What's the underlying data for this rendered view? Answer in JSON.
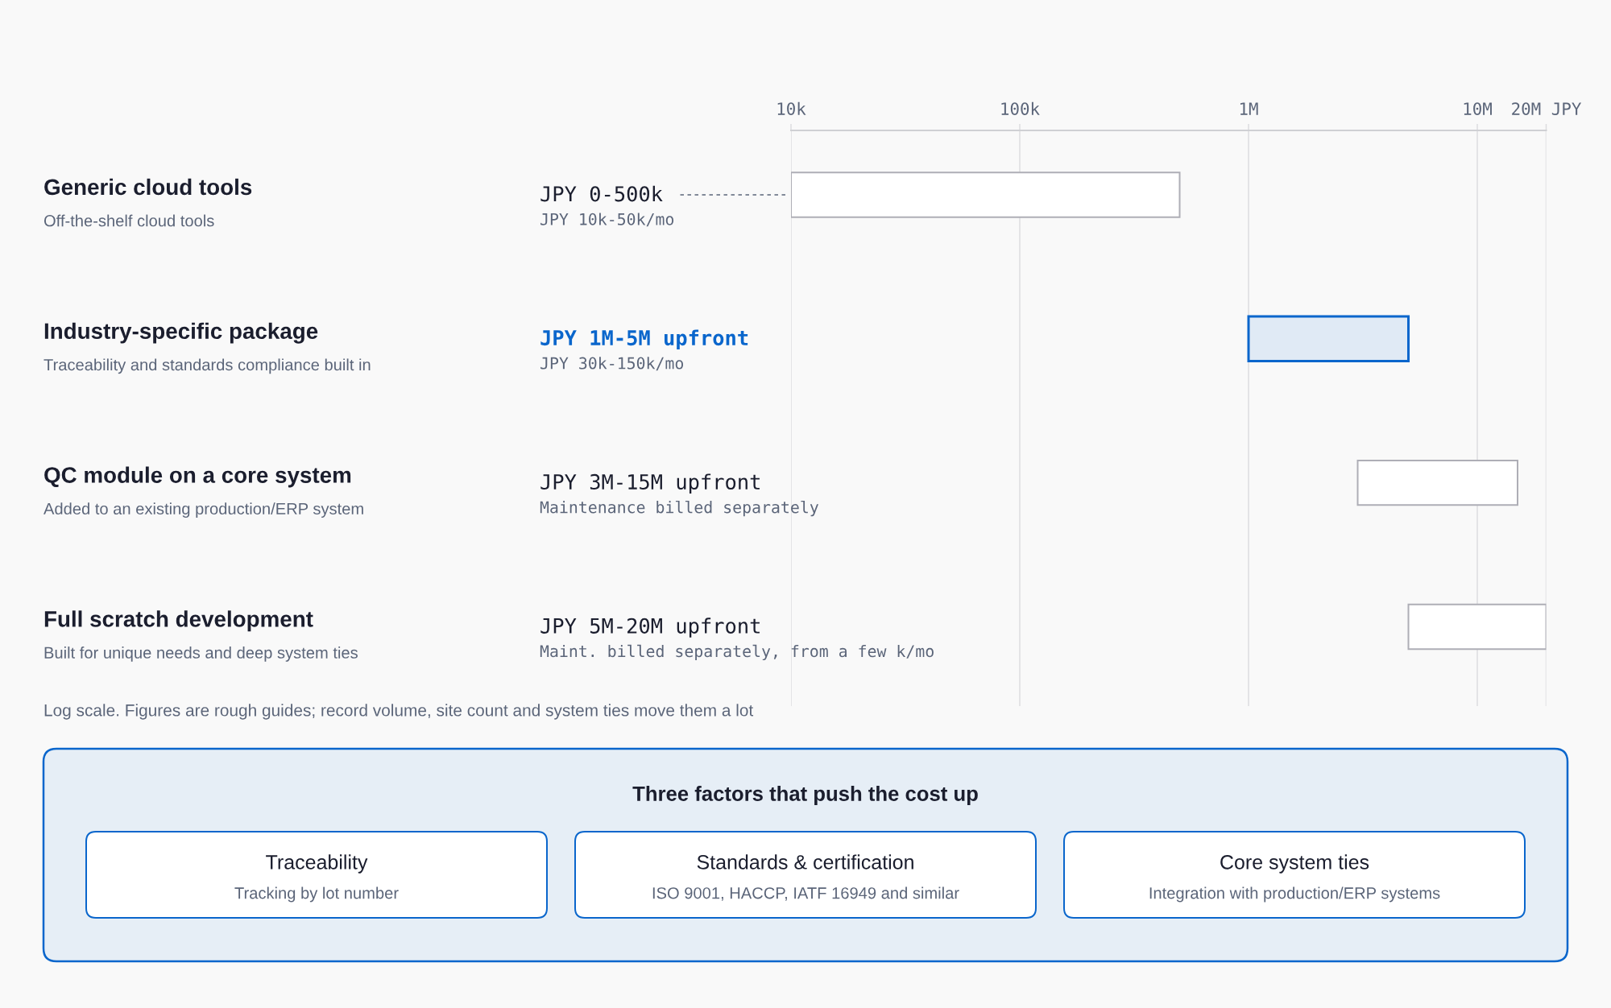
{
  "chart_data": [
    {
      "type": "bar",
      "orientation": "horizontal",
      "log": "x",
      "grid": "x",
      "categories": [
        "Generic cloud tools\nOff-the-shelf cloud tools",
        "Industry-specific package\nTraceability and standards compliance built in",
        "QC module on a core system\nAdded to an existing production/ERP system",
        "Full scratch development\nBuilt for unique needs and deep system ties"
      ],
      "base": [
        10000,
        1000000,
        3000000,
        5000000
      ],
      "values": [
        490000,
        4000000,
        12000000,
        15000000
      ],
      "colors": [
        "#ffffff",
        "#e0eaf5",
        "#ffffff",
        "#ffffff"
      ],
      "xlim": [
        10000,
        20000000
      ],
      "xticks": [
        {
          "value": 10000,
          "label": "10k"
        },
        {
          "value": 100000,
          "label": "100k"
        },
        {
          "value": 1000000,
          "label": "1M"
        },
        {
          "value": 10000000,
          "label": "10M"
        },
        {
          "value": 20000000,
          "label": "20M JPY"
        }
      ],
      "annotations": [
        "JPY 0-500k\nJPY 10k-50k/mo",
        "JPY 1M-5M upfront\nJPY 30k-150k/mo",
        "JPY 3M-15M upfront\nMaintenance billed separately",
        "JPY 5M-20M upfront\nMaint. billed separately, from a few k/mo",
        "Log scale. Figures are rough guides; record volume, site count and system ties move them a lot"
      ]
    },
    {
      "type": "other",
      "title": "Three factors that push the cost up",
      "categories": [
        "Traceability",
        "Standards & certification",
        "Core system ties"
      ],
      "annotations": [
        "Tracking by lot number",
        "ISO 9001, HACCP, IATF 16949 and similar",
        "Integration with production/ERP systems"
      ]
    }
  ]
}
